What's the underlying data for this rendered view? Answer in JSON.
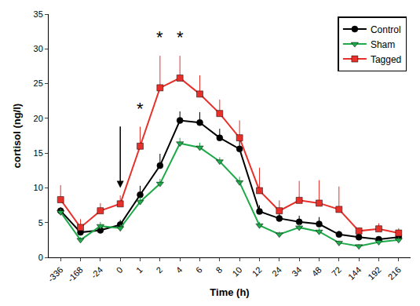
{
  "chart_data": {
    "type": "line",
    "x_label": "Time (h)",
    "y_label": "cortisol (ng/l)",
    "categories": [
      "-336",
      "-168",
      "-24",
      "0",
      "1",
      "2",
      "4",
      "6",
      "8",
      "10",
      "12",
      "24",
      "34",
      "48",
      "72",
      "144",
      "192",
      "216"
    ],
    "series": [
      {
        "name": "Control",
        "color": "#000000",
        "marker": "circle",
        "values": [
          6.7,
          3.6,
          3.9,
          4.7,
          9.0,
          13.2,
          19.7,
          19.4,
          17.2,
          15.6,
          6.6,
          5.6,
          5.1,
          4.8,
          3.3,
          2.9,
          2.6,
          2.9
        ],
        "errors": [
          0.5,
          0.5,
          0.5,
          0.7,
          1.3,
          1.7,
          1.3,
          1.5,
          1.3,
          1.4,
          0.9,
          0.8,
          0.9,
          1.0,
          0.5,
          0.7,
          0.4,
          0.5
        ]
      },
      {
        "name": "Sham",
        "color": "#1faa4a",
        "marker": "triangle-down",
        "values": [
          6.5,
          2.5,
          4.5,
          4.2,
          8.0,
          10.6,
          16.4,
          15.8,
          13.8,
          10.8,
          4.6,
          3.3,
          4.3,
          3.7,
          2.1,
          1.6,
          2.2,
          2.5
        ],
        "errors": [
          0.5,
          0.4,
          0.6,
          0.5,
          0.6,
          0.7,
          0.8,
          0.7,
          0.6,
          0.8,
          0.5,
          0.4,
          0.5,
          0.5,
          0.3,
          0.3,
          0.3,
          0.4
        ]
      },
      {
        "name": "Tagged",
        "color": "#e8302a",
        "marker": "square",
        "values": [
          8.3,
          4.3,
          6.7,
          7.7,
          16.0,
          24.4,
          25.8,
          23.5,
          20.7,
          17.2,
          9.6,
          6.7,
          8.2,
          7.8,
          6.9,
          3.8,
          4.1,
          3.5
        ],
        "errors": [
          2.1,
          1.2,
          1.1,
          1.2,
          2.8,
          4.6,
          3.2,
          2.7,
          2.0,
          2.5,
          3.3,
          1.5,
          2.8,
          3.3,
          3.3,
          0.5,
          0.8,
          0.7
        ]
      }
    ],
    "ylim": [
      0,
      35
    ],
    "yticks": [
      0,
      5,
      10,
      15,
      20,
      25,
      30,
      35
    ],
    "grid": false,
    "legend": "top right",
    "annotations": [
      {
        "x": "1",
        "y": 19.8,
        "text": "*"
      },
      {
        "x": "2",
        "y": 30.0,
        "text": "*"
      },
      {
        "x": "4",
        "y": 30.0,
        "text": "*"
      }
    ],
    "arrows": [
      {
        "x": "0",
        "y_start": 19,
        "y_end": 10
      }
    ]
  }
}
